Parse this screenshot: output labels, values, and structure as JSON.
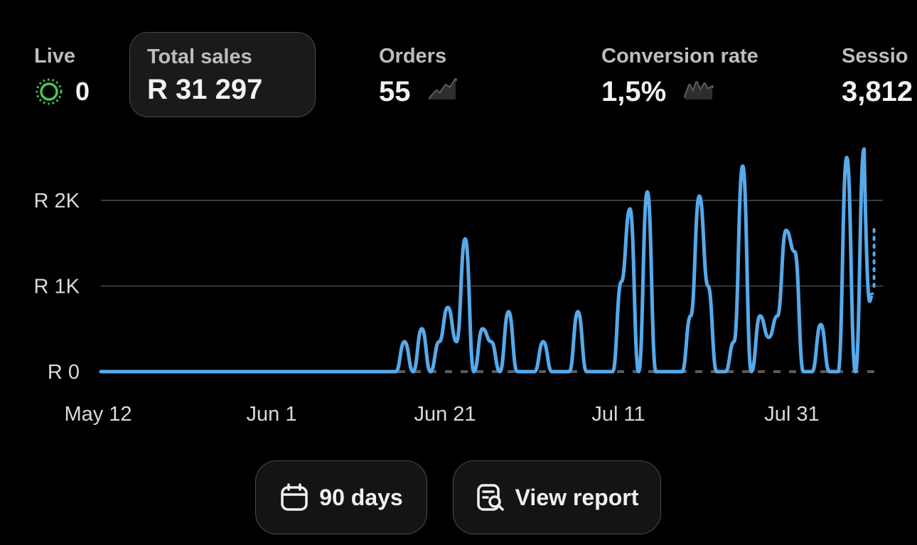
{
  "metrics": {
    "live": {
      "label": "Live",
      "value": "0",
      "icon": "live-pulse-icon",
      "color": "#4cc25a"
    },
    "total_sales": {
      "label": "Total sales",
      "value": "R 31 297"
    },
    "orders": {
      "label": "Orders",
      "value": "55",
      "icon": "sparkline-icon"
    },
    "conversion": {
      "label": "Conversion rate",
      "value": "1,5%",
      "icon": "sparkline-icon"
    },
    "sessions": {
      "label": "Sessio",
      "value": "3,812"
    }
  },
  "chart_data": {
    "type": "line",
    "title": "",
    "xlabel": "",
    "ylabel": "",
    "x_ticks": [
      "May 12",
      "Jun 1",
      "Jun 21",
      "Jul 11",
      "Jul 31"
    ],
    "y_ticks": [
      "R 0",
      "R 1K",
      "R 2K"
    ],
    "ylim": [
      0,
      2500
    ],
    "grid": true,
    "colors": {
      "series": "#56a9ea",
      "grid": "#3a3a3a",
      "baseline_dash": "#5a5a5a"
    },
    "series": [
      {
        "x": [
          "2024-05-12",
          "2024-05-13",
          "2024-05-14",
          "2024-05-15",
          "2024-05-16",
          "2024-05-17",
          "2024-05-18",
          "2024-05-19",
          "2024-05-20",
          "2024-05-21",
          "2024-05-22",
          "2024-05-23",
          "2024-05-24",
          "2024-05-25",
          "2024-05-26",
          "2024-05-27",
          "2024-05-28",
          "2024-05-29",
          "2024-05-30",
          "2024-05-31",
          "2024-06-01",
          "2024-06-02",
          "2024-06-03",
          "2024-06-04",
          "2024-06-05",
          "2024-06-06",
          "2024-06-07",
          "2024-06-08",
          "2024-06-09",
          "2024-06-10",
          "2024-06-11",
          "2024-06-12",
          "2024-06-13",
          "2024-06-14",
          "2024-06-15",
          "2024-06-16",
          "2024-06-17",
          "2024-06-18",
          "2024-06-19",
          "2024-06-20",
          "2024-06-21",
          "2024-06-22",
          "2024-06-23",
          "2024-06-24",
          "2024-06-25",
          "2024-06-26",
          "2024-06-27",
          "2024-06-28",
          "2024-06-29",
          "2024-06-30",
          "2024-07-01",
          "2024-07-02",
          "2024-07-03",
          "2024-07-04",
          "2024-07-05",
          "2024-07-06",
          "2024-07-07",
          "2024-07-08",
          "2024-07-09",
          "2024-07-10",
          "2024-07-11",
          "2024-07-12",
          "2024-07-13",
          "2024-07-14",
          "2024-07-15",
          "2024-07-16",
          "2024-07-17",
          "2024-07-18",
          "2024-07-19",
          "2024-07-20",
          "2024-07-21",
          "2024-07-22",
          "2024-07-23",
          "2024-07-24",
          "2024-07-25",
          "2024-07-26",
          "2024-07-27",
          "2024-07-28",
          "2024-07-29",
          "2024-07-30",
          "2024-07-31",
          "2024-08-01",
          "2024-08-02",
          "2024-08-03",
          "2024-08-04",
          "2024-08-05",
          "2024-08-06",
          "2024-08-07",
          "2024-08-08"
        ],
        "y": [
          0,
          0,
          0,
          0,
          0,
          0,
          0,
          0,
          0,
          0,
          0,
          0,
          0,
          0,
          0,
          0,
          0,
          0,
          0,
          0,
          0,
          0,
          0,
          0,
          0,
          0,
          0,
          0,
          0,
          0,
          0,
          0,
          0,
          0,
          0,
          350,
          0,
          500,
          0,
          350,
          750,
          350,
          1550,
          0,
          500,
          350,
          0,
          700,
          0,
          0,
          0,
          350,
          0,
          0,
          0,
          700,
          0,
          0,
          0,
          0,
          1050,
          1900,
          0,
          2100,
          0,
          0,
          0,
          0,
          650,
          2050,
          1000,
          0,
          0,
          350,
          2400,
          0,
          650,
          400,
          650,
          1650,
          1400,
          0,
          0,
          550,
          0,
          0,
          2500,
          0,
          2600
        ],
        "tail_dotted_y": 1700
      }
    ]
  },
  "buttons": {
    "days": {
      "label": "90 days",
      "icon": "calendar-icon"
    },
    "report": {
      "label": "View report",
      "icon": "report-search-icon"
    }
  }
}
